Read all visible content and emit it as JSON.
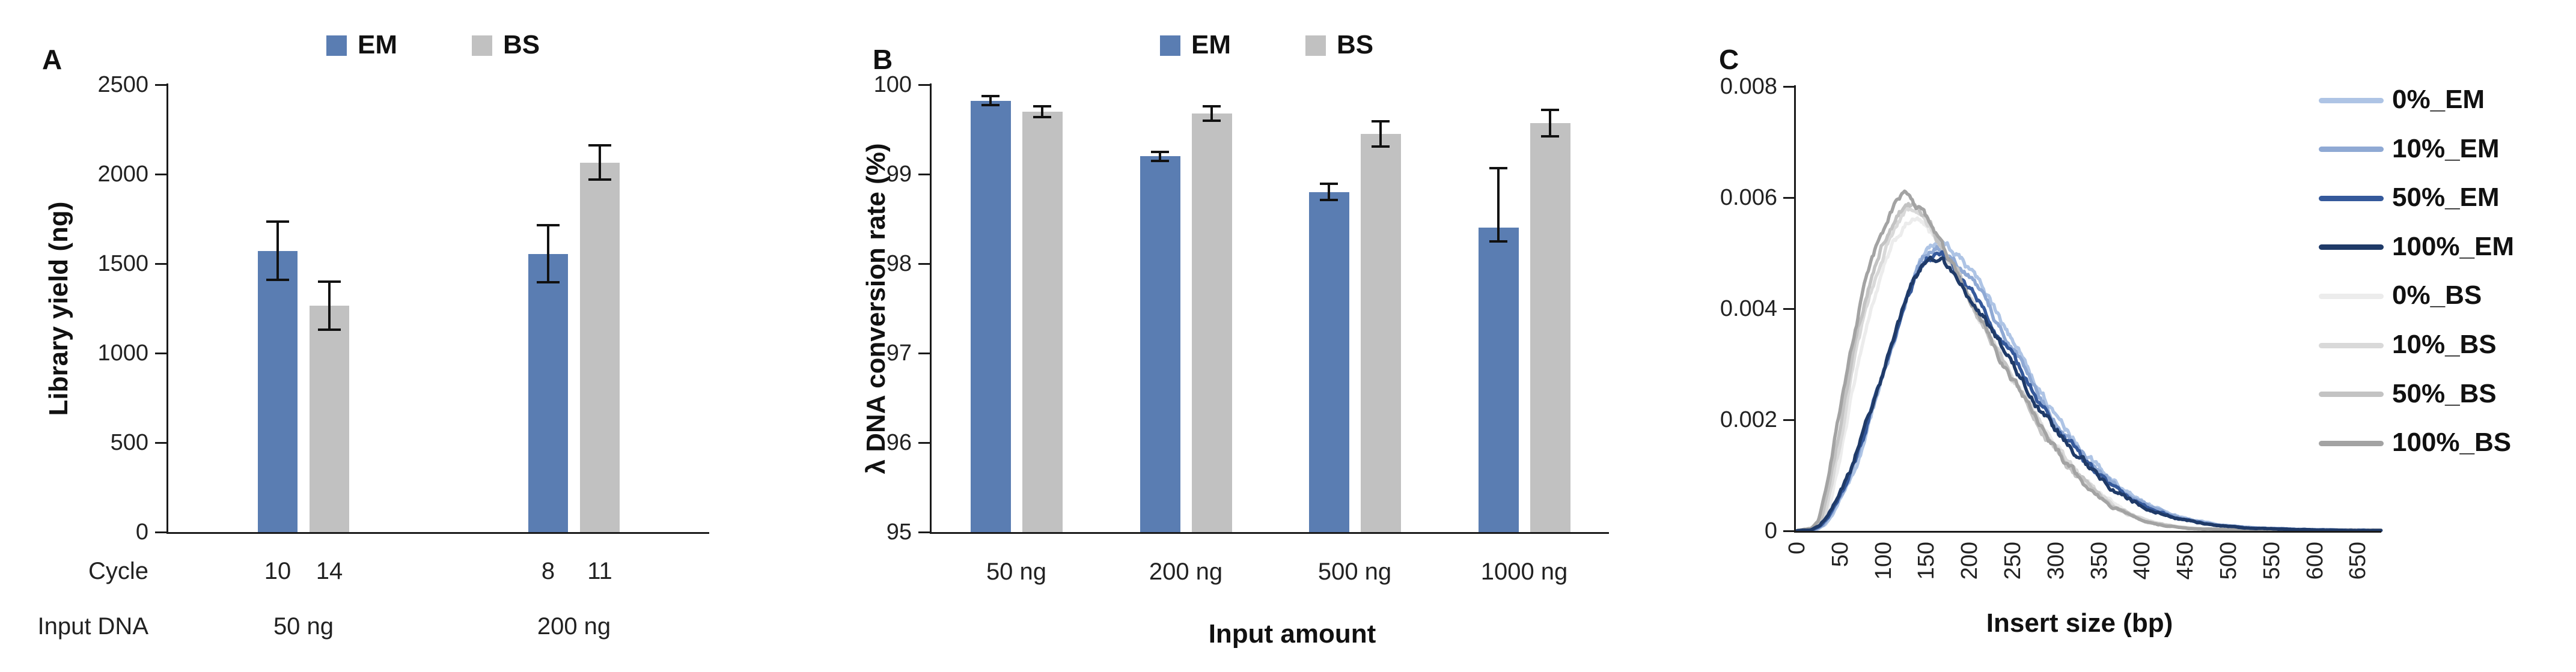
{
  "figure_title": "",
  "chart_data": [
    {
      "id": "A",
      "type": "bar",
      "ylabel": "Library yield (ng)",
      "ylim": [
        0,
        2500
      ],
      "yticks": [
        "0",
        "500",
        "1000",
        "1500",
        "2000",
        "2500"
      ],
      "ytick_values": [
        0,
        500,
        1000,
        1500,
        2000,
        2500
      ],
      "categories": [
        "50 ng",
        "200 ng"
      ],
      "row_labels": {
        "cycle": "Cycle",
        "input": "Input DNA"
      },
      "series": [
        {
          "name": "EM",
          "color": "#5a7db2",
          "values": [
            1570,
            1555
          ],
          "err_up": [
            165,
            160
          ],
          "err_down": [
            160,
            160
          ],
          "cycles": [
            "10",
            "8"
          ]
        },
        {
          "name": "BS",
          "color": "#c1c1c1",
          "values": [
            1265,
            2065
          ],
          "err_up": [
            135,
            95
          ],
          "err_down": [
            135,
            95
          ],
          "cycles": [
            "14",
            "11"
          ]
        }
      ],
      "legend": [
        "EM",
        "BS"
      ]
    },
    {
      "id": "B",
      "type": "bar",
      "ylabel": "λ DNA conversion rate (%)",
      "xlabel": "Input amount",
      "ylim": [
        95,
        100
      ],
      "yticks": [
        "95",
        "96",
        "97",
        "98",
        "99",
        "100"
      ],
      "ytick_values": [
        95,
        96,
        97,
        98,
        99,
        100
      ],
      "categories": [
        "50 ng",
        "200 ng",
        "500 ng",
        "1000 ng"
      ],
      "series": [
        {
          "name": "EM",
          "color": "#5a7db2",
          "values": [
            99.82,
            99.2,
            98.8,
            98.4
          ],
          "err_up": [
            0.05,
            0.05,
            0.09,
            0.67
          ],
          "err_down": [
            0.05,
            0.05,
            0.09,
            0.15
          ]
        },
        {
          "name": "BS",
          "color": "#c1c1c1",
          "values": [
            99.7,
            99.68,
            99.45,
            99.57
          ],
          "err_up": [
            0.06,
            0.08,
            0.14,
            0.15
          ],
          "err_down": [
            0.06,
            0.08,
            0.14,
            0.15
          ]
        }
      ],
      "legend": [
        "EM",
        "BS"
      ]
    },
    {
      "id": "C",
      "type": "line",
      "xlabel": "Insert size (bp)",
      "ylim": [
        0,
        0.008
      ],
      "yticks": [
        "0",
        "0.002",
        "0.004",
        "0.006",
        "0.008"
      ],
      "ytick_values": [
        0,
        0.002,
        0.004,
        0.006,
        0.008
      ],
      "xticks": [
        "0",
        "50",
        "100",
        "150",
        "200",
        "250",
        "300",
        "350",
        "400",
        "450",
        "500",
        "550",
        "600",
        "650"
      ],
      "xtick_values": [
        0,
        50,
        100,
        150,
        200,
        250,
        300,
        350,
        400,
        450,
        500,
        550,
        600,
        650
      ],
      "xlim": [
        0,
        677
      ],
      "base_curves": {
        "EM": [
          [
            0,
            0
          ],
          [
            20,
            2e-05
          ],
          [
            30,
            0.0001
          ],
          [
            40,
            0.0003
          ],
          [
            50,
            0.0006
          ],
          [
            60,
            0.0009
          ],
          [
            70,
            0.0013
          ],
          [
            80,
            0.0018
          ],
          [
            90,
            0.0023
          ],
          [
            100,
            0.0028
          ],
          [
            110,
            0.0033
          ],
          [
            120,
            0.0038
          ],
          [
            130,
            0.0043
          ],
          [
            140,
            0.0047
          ],
          [
            150,
            0.005
          ],
          [
            160,
            0.0051
          ],
          [
            170,
            0.00505
          ],
          [
            180,
            0.0049
          ],
          [
            195,
            0.0046
          ],
          [
            210,
            0.0043
          ],
          [
            225,
            0.0039
          ],
          [
            240,
            0.0035
          ],
          [
            255,
            0.0031
          ],
          [
            270,
            0.0027
          ],
          [
            285,
            0.0023
          ],
          [
            300,
            0.00195
          ],
          [
            315,
            0.00165
          ],
          [
            330,
            0.0014
          ],
          [
            345,
            0.00115
          ],
          [
            360,
            0.00092
          ],
          [
            375,
            0.00074
          ],
          [
            390,
            0.00058
          ],
          [
            410,
            0.00042
          ],
          [
            430,
            0.0003
          ],
          [
            450,
            0.00021
          ],
          [
            470,
            0.00015
          ],
          [
            490,
            0.0001
          ],
          [
            520,
            6e-05
          ],
          [
            550,
            4e-05
          ],
          [
            600,
            2e-05
          ],
          [
            650,
            1e-05
          ],
          [
            677,
            1e-05
          ]
        ],
        "BS": [
          [
            0,
            0
          ],
          [
            20,
            5e-05
          ],
          [
            28,
            0.0002
          ],
          [
            35,
            0.0007
          ],
          [
            45,
            0.0015
          ],
          [
            55,
            0.0024
          ],
          [
            65,
            0.0033
          ],
          [
            75,
            0.004
          ],
          [
            85,
            0.0046
          ],
          [
            95,
            0.0051
          ],
          [
            105,
            0.0055
          ],
          [
            115,
            0.0058
          ],
          [
            125,
            0.006
          ],
          [
            135,
            0.006
          ],
          [
            145,
            0.0058
          ],
          [
            155,
            0.0056
          ],
          [
            165,
            0.0053
          ],
          [
            175,
            0.005
          ],
          [
            190,
            0.0046
          ],
          [
            205,
            0.0041
          ],
          [
            220,
            0.0037
          ],
          [
            235,
            0.0032
          ],
          [
            250,
            0.0028
          ],
          [
            265,
            0.0024
          ],
          [
            280,
            0.002
          ],
          [
            295,
            0.0016
          ],
          [
            310,
            0.0013
          ],
          [
            325,
            0.00102
          ],
          [
            340,
            0.00078
          ],
          [
            355,
            0.00058
          ],
          [
            370,
            0.00042
          ],
          [
            385,
            0.0003
          ],
          [
            400,
            0.0002
          ],
          [
            420,
            0.00012
          ],
          [
            440,
            7e-05
          ],
          [
            460,
            4e-05
          ],
          [
            500,
            2e-05
          ],
          [
            560,
            1e-05
          ],
          [
            677,
            1e-05
          ]
        ]
      },
      "series": [
        {
          "name": "0%_EM",
          "family": "EM",
          "color": "#aec4e5",
          "scale": 1.03,
          "xshift": 2
        },
        {
          "name": "10%_EM",
          "family": "EM",
          "color": "#8fa9d4",
          "scale": 1.01,
          "xshift": 0
        },
        {
          "name": "50%_EM",
          "family": "EM",
          "color": "#35599b",
          "scale": 0.98,
          "xshift": -2
        },
        {
          "name": "100%_EM",
          "family": "EM",
          "color": "#1f3a68",
          "scale": 0.96,
          "xshift": -4
        },
        {
          "name": "0%_BS",
          "family": "BS",
          "color": "#ececec",
          "scale": 0.93,
          "xshift": 6
        },
        {
          "name": "10%_BS",
          "family": "BS",
          "color": "#d9d9d9",
          "scale": 0.96,
          "xshift": 3
        },
        {
          "name": "50%_BS",
          "family": "BS",
          "color": "#c3c3c3",
          "scale": 0.98,
          "xshift": 0
        },
        {
          "name": "100%_BS",
          "family": "BS",
          "color": "#a3a3a3",
          "scale": 1.0,
          "xshift": -3
        }
      ],
      "draw_order": [
        "0%_BS",
        "10%_BS",
        "0%_EM",
        "10%_EM",
        "50%_BS",
        "50%_EM",
        "100%_BS",
        "100%_EM"
      ]
    }
  ]
}
